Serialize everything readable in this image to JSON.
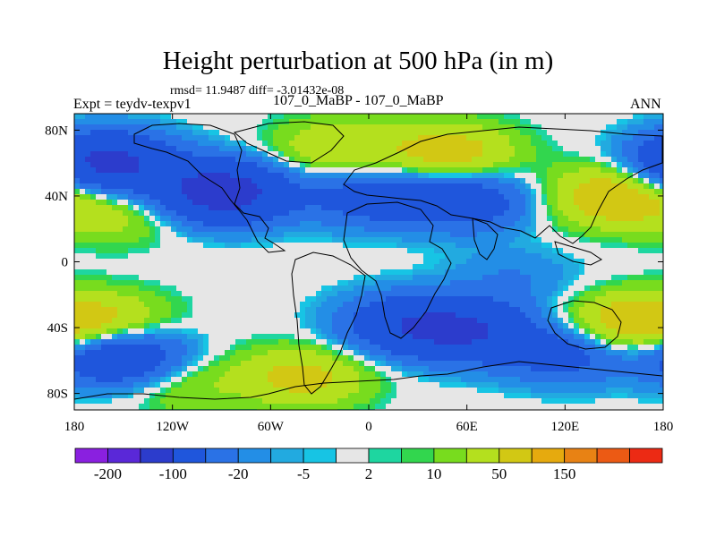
{
  "chart_data": {
    "type": "heatmap",
    "title": "Height perturbation at 500 hPa (in m)",
    "stats_line": "rmsd= 11.9487 diff= -3.01432e-08",
    "experiment_label": "Expt = teydv-texpv1",
    "case_label": "107_0_MaBP - 107_0_MaBP",
    "season_label": "ANN",
    "x_axis": {
      "range": [
        -180,
        180
      ],
      "ticks": [
        -180,
        -120,
        -60,
        0,
        60,
        120,
        180
      ],
      "tick_labels": [
        "180",
        "120W",
        "60W",
        "0",
        "60E",
        "120E",
        "180"
      ]
    },
    "y_axis": {
      "range": [
        -90,
        90
      ],
      "ticks": [
        80,
        40,
        0,
        -40,
        -80
      ],
      "tick_labels": [
        "80N",
        "40N",
        "0",
        "40S",
        "80S"
      ]
    },
    "colorbar": {
      "colors": [
        "#8a20e0",
        "#5a28d8",
        "#2c3ccc",
        "#1f56dc",
        "#2a72e6",
        "#238ee6",
        "#22aae0",
        "#17c4e4",
        "#e6e6e6",
        "#1ed6a0",
        "#32d64e",
        "#78dc1e",
        "#b4e01e",
        "#d2c814",
        "#e6aa0e",
        "#e88214",
        "#ec5a14",
        "#ec2a14"
      ],
      "labels": [
        "-200",
        "-100",
        "-20",
        "-5",
        "2",
        "10",
        "50",
        "150"
      ]
    },
    "field_anomalies": [
      {
        "lon": -160,
        "lat": 60,
        "value": -60
      },
      {
        "lon": -90,
        "lat": 42,
        "value": -70
      },
      {
        "lon": 0,
        "lat": 40,
        "value": -30
      },
      {
        "lon": 60,
        "lat": 38,
        "value": -35
      },
      {
        "lon": 50,
        "lat": 65,
        "value": 30
      },
      {
        "lon": -20,
        "lat": 68,
        "value": 20
      },
      {
        "lon": 150,
        "lat": 40,
        "value": 35
      },
      {
        "lon": -150,
        "lat": 30,
        "value": 15
      },
      {
        "lon": -160,
        "lat": -38,
        "value": 25
      },
      {
        "lon": 155,
        "lat": -38,
        "value": 30
      },
      {
        "lon": 20,
        "lat": -38,
        "value": -35
      },
      {
        "lon": 60,
        "lat": -42,
        "value": -45
      },
      {
        "lon": 120,
        "lat": -55,
        "value": -30
      },
      {
        "lon": -150,
        "lat": -58,
        "value": -50
      },
      {
        "lon": -40,
        "lat": -70,
        "value": 25
      },
      {
        "lon": -120,
        "lat": -72,
        "value": 15
      },
      {
        "lon": 90,
        "lat": -10,
        "value": -10
      }
    ]
  }
}
